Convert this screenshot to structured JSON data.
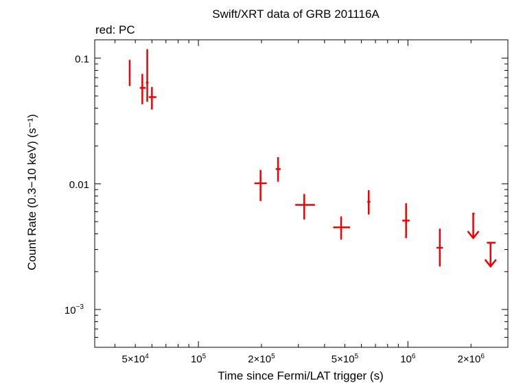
{
  "chart_data": {
    "type": "scatter",
    "title": "Swift/XRT data of GRB 201116A",
    "subtitle": "red: PC",
    "xlabel": "Time since Fermi/LAT trigger (s)",
    "ylabel": "Count Rate (0.3−10 keV) (s⁻¹)",
    "xscale": "log",
    "yscale": "log",
    "xlim": [
      32000,
      3000000
    ],
    "ylim": [
      0.0005,
      0.14
    ],
    "series_color": "#ee0000",
    "x_ticks": [
      {
        "value": 50000,
        "label": "5×10",
        "sup": "4"
      },
      {
        "value": 100000,
        "label": "10",
        "sup": "5"
      },
      {
        "value": 200000,
        "label": "2×10",
        "sup": "5"
      },
      {
        "value": 500000,
        "label": "5×10",
        "sup": "5"
      },
      {
        "value": 1000000,
        "label": "10",
        "sup": "6"
      },
      {
        "value": 2000000,
        "label": "2×10",
        "sup": "6"
      }
    ],
    "y_ticks": [
      {
        "value": 0.1,
        "label": "0.1",
        "sup": ""
      },
      {
        "value": 0.01,
        "label": "0.01",
        "sup": ""
      },
      {
        "value": 0.001,
        "label": "10",
        "sup": "−3"
      }
    ],
    "points": [
      {
        "x": 47000,
        "xlo": 46800,
        "xhi": 47300,
        "y": 0.077,
        "ylo": 0.06,
        "yhi": 0.097
      },
      {
        "x": 54000,
        "xlo": 52500,
        "xhi": 56000,
        "y": 0.058,
        "ylo": 0.043,
        "yhi": 0.075
      },
      {
        "x": 57000,
        "xlo": 56200,
        "xhi": 57800,
        "y": 0.064,
        "ylo": 0.045,
        "yhi": 0.118
      },
      {
        "x": 60000,
        "xlo": 58000,
        "xhi": 63000,
        "y": 0.049,
        "ylo": 0.039,
        "yhi": 0.059
      },
      {
        "x": 198000,
        "xlo": 185000,
        "xhi": 212000,
        "y": 0.0101,
        "ylo": 0.0073,
        "yhi": 0.0129
      },
      {
        "x": 240000,
        "xlo": 234000,
        "xhi": 247000,
        "y": 0.0131,
        "ylo": 0.0104,
        "yhi": 0.0163
      },
      {
        "x": 320000,
        "xlo": 290000,
        "xhi": 360000,
        "y": 0.0068,
        "ylo": 0.0052,
        "yhi": 0.0083
      },
      {
        "x": 480000,
        "xlo": 440000,
        "xhi": 530000,
        "y": 0.0045,
        "ylo": 0.0036,
        "yhi": 0.0055
      },
      {
        "x": 650000,
        "xlo": 640000,
        "xhi": 662000,
        "y": 0.0072,
        "ylo": 0.0057,
        "yhi": 0.0089
      },
      {
        "x": 980000,
        "xlo": 940000,
        "xhi": 1020000,
        "y": 0.0051,
        "ylo": 0.0037,
        "yhi": 0.007
      },
      {
        "x": 1420000,
        "xlo": 1370000,
        "xhi": 1470000,
        "y": 0.0031,
        "ylo": 0.0022,
        "yhi": 0.0044
      }
    ],
    "upper_limits": [
      {
        "x": 2050000,
        "xlo": 2030000,
        "xhi": 2080000,
        "y": 0.0058,
        "arrow_to": 0.0037
      },
      {
        "x": 2480000,
        "xlo": 2380000,
        "xhi": 2620000,
        "y": 0.0034,
        "arrow_to": 0.0022
      }
    ]
  }
}
